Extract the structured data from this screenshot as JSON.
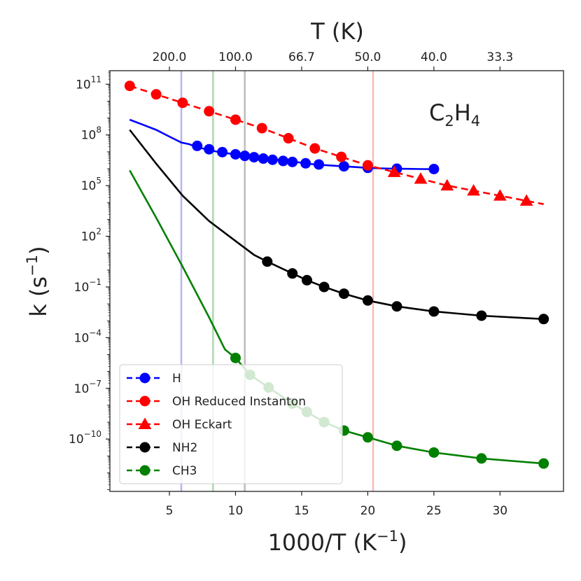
{
  "chart_data": {
    "type": "line",
    "title": "",
    "annotation": {
      "base": "C",
      "sub1": "2",
      "mid": "H",
      "sub2": "4"
    },
    "xlabel": {
      "text": "1000/T (K",
      "sup": "−1",
      "close": ")"
    },
    "ylabel": {
      "text": "k (s",
      "sup": "−1",
      "close": ")"
    },
    "top_axis_label": "T (K)",
    "xlim": [
      0.5,
      34.8
    ],
    "ylim_log10": [
      -13.1,
      11.8
    ],
    "x_ticks": [
      5,
      10,
      15,
      20,
      25,
      30
    ],
    "x_tick_labels": [
      "5",
      "10",
      "15",
      "20",
      "25",
      "30"
    ],
    "y_ticks_log10": [
      -10,
      -7,
      -4,
      -1,
      2,
      5,
      8,
      11
    ],
    "y_tick_labels": [
      {
        "base": "10",
        "exp": "−10"
      },
      {
        "base": "10",
        "exp": "−7"
      },
      {
        "base": "10",
        "exp": "−4"
      },
      {
        "base": "10",
        "exp": "−1"
      },
      {
        "base": "10",
        "exp": "2"
      },
      {
        "base": "10",
        "exp": "5"
      },
      {
        "base": "10",
        "exp": "8"
      },
      {
        "base": "10",
        "exp": "11"
      }
    ],
    "top_ticks": [
      {
        "x": 5,
        "label": "200.0"
      },
      {
        "x": 10,
        "label": "100.0"
      },
      {
        "x": 15,
        "label": "66.7"
      },
      {
        "x": 20,
        "label": "50.0"
      },
      {
        "x": 25,
        "label": "40.0"
      },
      {
        "x": 30,
        "label": "33.3"
      }
    ],
    "vlines": [
      {
        "x": 5.9,
        "color": "#b4b4f0"
      },
      {
        "x": 8.3,
        "color": "#b0d6b0"
      },
      {
        "x": 10.7,
        "color": "#bdbdbd"
      },
      {
        "x": 20.4,
        "color": "#f7baba"
      }
    ],
    "legend_position": "lower-left",
    "series": [
      {
        "name": "H",
        "color": "#0000ff",
        "marker": "circle",
        "legend_style": "dashed",
        "line_x": [
          2.0,
          3,
          4,
          5,
          5.9,
          6.5,
          7,
          8,
          9,
          10,
          11,
          12,
          13,
          14,
          15,
          16,
          17,
          18,
          19,
          20,
          21,
          22,
          23,
          24,
          25
        ],
        "line_log10": [
          8.9,
          8.6,
          8.3,
          7.9,
          7.55,
          7.45,
          7.3,
          7.1,
          6.95,
          6.85,
          6.75,
          6.65,
          6.55,
          6.45,
          6.35,
          6.25,
          6.2,
          6.15,
          6.1,
          6.05,
          6.02,
          6.0,
          5.99,
          5.98,
          5.97
        ],
        "marker_x": [
          7.1,
          8.0,
          9.0,
          10.0,
          10.7,
          11.4,
          12.1,
          12.8,
          13.6,
          14.3,
          15.3,
          16.3,
          18.2,
          20.0,
          22.2,
          25.0
        ],
        "marker_log10": [
          7.35,
          7.15,
          6.98,
          6.85,
          6.76,
          6.68,
          6.6,
          6.53,
          6.46,
          6.4,
          6.32,
          6.25,
          6.14,
          6.05,
          6.0,
          5.98
        ]
      },
      {
        "name": "OH Reduced Instanton",
        "color": "#ff0000",
        "marker": "circle",
        "legend_style": "dashed",
        "line_x": [],
        "line_log10": [],
        "dashed_x": [
          2.0,
          4.0,
          6.0,
          8.0,
          10.0,
          12.0,
          14.0,
          16.0,
          18.0,
          20.0,
          22.0,
          24.0,
          26.0,
          28.0,
          30.0,
          32.0,
          33.3
        ],
        "dashed_log10": [
          10.9,
          10.4,
          9.9,
          9.4,
          8.9,
          8.4,
          7.8,
          7.2,
          6.7,
          6.2,
          5.8,
          5.4,
          5.0,
          4.7,
          4.4,
          4.1,
          3.9
        ],
        "marker_x": [
          2.0,
          4.0,
          6.0,
          8.0,
          10.0,
          12.0,
          14.0,
          16.0,
          18.0,
          20.0
        ],
        "marker_log10": [
          10.9,
          10.4,
          9.9,
          9.4,
          8.9,
          8.4,
          7.8,
          7.2,
          6.7,
          6.2
        ]
      },
      {
        "name": "OH Eckart",
        "color": "#ff0000",
        "marker": "triangle",
        "legend_style": "dashed",
        "line_x": [],
        "line_log10": [],
        "marker_x": [
          22.0,
          24.0,
          26.0,
          28.0,
          30.0,
          32.0
        ],
        "marker_log10": [
          5.8,
          5.4,
          5.0,
          4.7,
          4.4,
          4.1
        ]
      },
      {
        "name": "NH2",
        "color": "#000000",
        "marker": "circle",
        "legend_style": "dashed",
        "line_x": [
          2.0,
          4,
          6,
          8,
          10.2,
          11.4,
          12.4,
          14.3,
          15.4,
          16.7,
          18.2,
          20.0,
          22.2,
          25.0,
          28.6,
          33.3
        ],
        "line_log10": [
          8.3,
          6.3,
          4.4,
          2.9,
          1.6,
          0.9,
          0.5,
          -0.2,
          -0.6,
          -1.0,
          -1.4,
          -1.8,
          -2.15,
          -2.45,
          -2.7,
          -2.9
        ],
        "marker_x": [
          12.4,
          14.3,
          15.4,
          16.7,
          18.2,
          20.0,
          22.2,
          25.0,
          28.6,
          33.3
        ],
        "marker_log10": [
          0.5,
          -0.2,
          -0.6,
          -1.0,
          -1.4,
          -1.8,
          -2.15,
          -2.45,
          -2.7,
          -2.9
        ]
      },
      {
        "name": "CH3",
        "color": "#008000",
        "marker": "circle",
        "legend_style": "dashed",
        "line_x": [
          2.0,
          4,
          6,
          8,
          9.2,
          10.0,
          11.1,
          12.5,
          14.3,
          15.4,
          16.7,
          18.2,
          20.0,
          22.2,
          25.0,
          28.6,
          33.3
        ],
        "line_log10": [
          5.9,
          3.1,
          0.2,
          -2.8,
          -4.7,
          -5.2,
          -6.2,
          -6.95,
          -7.9,
          -8.4,
          -9.0,
          -9.5,
          -9.9,
          -10.4,
          -10.8,
          -11.15,
          -11.45
        ],
        "marker_x": [
          10.0,
          11.1,
          12.5,
          14.3,
          15.4,
          16.7,
          18.2,
          20.0,
          22.2,
          25.0,
          28.6,
          33.3
        ],
        "marker_log10": [
          -5.2,
          -6.2,
          -6.95,
          -7.9,
          -8.4,
          -9.0,
          -9.5,
          -9.9,
          -10.4,
          -10.8,
          -11.15,
          -11.45
        ]
      }
    ]
  }
}
